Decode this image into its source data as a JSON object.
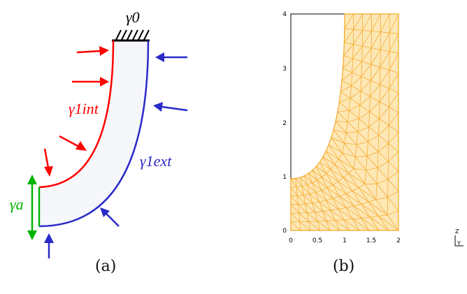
{
  "panel_a": {
    "caption": "(a)",
    "labels": {
      "gamma0": "γ0",
      "gamma1int": "γ1int",
      "gamma1ext": "γ1ext",
      "gammaA": "γa"
    },
    "colors": {
      "interior": "#ff0000",
      "exterior": "#2a2ac8",
      "gamma_a": "#00b400",
      "support": "#000000"
    }
  },
  "panel_b": {
    "caption": "(b)",
    "x_ticks": [
      "0",
      "0.5",
      "1",
      "1.5",
      "2"
    ],
    "y_ticks": [
      "0",
      "1",
      "2",
      "3",
      "4"
    ],
    "axis_triad": {
      "z": "Z",
      "y": "Y"
    },
    "mesh_color": "#f5a623"
  }
}
